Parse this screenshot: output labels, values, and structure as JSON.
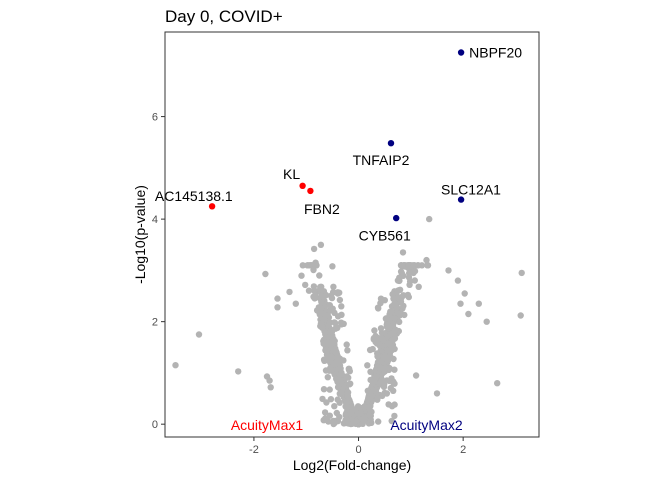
{
  "chart_data": {
    "type": "scatter",
    "title": "Day 0, COVID+",
    "xlabel": "Log2(Fold-change)",
    "ylabel": "-Log10(p-value)",
    "xlim": [
      -3.7,
      3.45
    ],
    "ylim": [
      -0.25,
      7.65
    ],
    "xticks": [
      -2,
      0,
      2
    ],
    "yticks": [
      0,
      2,
      4,
      6
    ],
    "xtick_labels": [
      "-2",
      "0",
      "2"
    ],
    "ytick_labels": [
      "0",
      "2",
      "4",
      "6"
    ],
    "grid": false,
    "colors": {
      "background_point": "#b3b3b3",
      "acuitymax1": "#ff0000",
      "acuitymax2": "#000080",
      "panel_border": "#333333"
    },
    "group_labels": [
      {
        "text": "AcuityMax1",
        "x": -1.75,
        "y": -0.02,
        "color": "#ff0000"
      },
      {
        "text": "AcuityMax2",
        "x": 1.3,
        "y": -0.02,
        "color": "#000080"
      }
    ],
    "highlighted": [
      {
        "label": "NBPF20",
        "x": 1.96,
        "y": 7.25,
        "group": "AcuityMax2",
        "label_x": 2.62,
        "label_y": 7.25
      },
      {
        "label": "TNFAIP2",
        "x": 0.62,
        "y": 5.48,
        "group": "AcuityMax2",
        "label_x": 0.43,
        "label_y": 5.15
      },
      {
        "label": "SLC12A1",
        "x": 1.96,
        "y": 4.38,
        "group": "AcuityMax2",
        "label_x": 2.15,
        "label_y": 4.58
      },
      {
        "label": "CYB561",
        "x": 0.72,
        "y": 4.02,
        "group": "AcuityMax2",
        "label_x": 0.5,
        "label_y": 3.68
      },
      {
        "label": "KL",
        "x": -1.07,
        "y": 4.65,
        "group": "AcuityMax1",
        "label_x": -1.28,
        "label_y": 4.88
      },
      {
        "label": "FBN2",
        "x": -0.92,
        "y": 4.55,
        "group": "AcuityMax1",
        "label_x": -0.7,
        "label_y": 4.2
      },
      {
        "label": "AC145138.1",
        "x": -2.8,
        "y": 4.25,
        "group": "AcuityMax1",
        "label_x": -3.15,
        "label_y": 4.45
      }
    ],
    "background_outliers": [
      [
        -3.5,
        1.15
      ],
      [
        -3.05,
        1.75
      ],
      [
        -2.3,
        1.03
      ],
      [
        -1.75,
        0.93
      ],
      [
        -1.7,
        0.85
      ],
      [
        -1.68,
        0.72
      ],
      [
        -1.78,
        2.93
      ],
      [
        -1.55,
        2.28
      ],
      [
        -1.32,
        2.58
      ],
      [
        -1.2,
        2.35
      ],
      [
        -1.55,
        2.45
      ],
      [
        -0.85,
        3.42
      ],
      [
        -0.82,
        3.15
      ],
      [
        -0.72,
        3.5
      ],
      [
        -0.75,
        2.9
      ],
      [
        -0.5,
        3.08
      ],
      [
        -0.48,
        2.68
      ],
      [
        0.85,
        3.35
      ],
      [
        0.95,
        3.05
      ],
      [
        1.05,
        2.95
      ],
      [
        1.15,
        2.68
      ],
      [
        1.3,
        3.2
      ],
      [
        1.35,
        4.0
      ],
      [
        1.72,
        3.0
      ],
      [
        1.9,
        2.8
      ],
      [
        2.03,
        2.55
      ],
      [
        1.95,
        2.35
      ],
      [
        2.3,
        2.35
      ],
      [
        2.45,
        2.0
      ],
      [
        2.1,
        2.15
      ],
      [
        2.65,
        0.8
      ],
      [
        3.1,
        2.12
      ],
      [
        3.12,
        2.95
      ],
      [
        1.5,
        0.6
      ],
      [
        1.1,
        0.95
      ]
    ]
  }
}
